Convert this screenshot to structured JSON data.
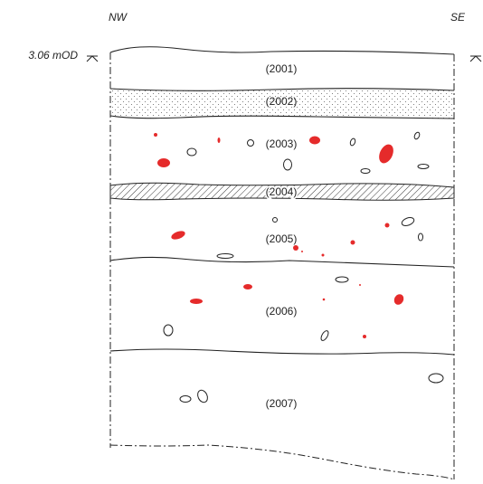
{
  "header": {
    "left": "NW",
    "right": "SE"
  },
  "datum": "3.06 mOD",
  "layers": [
    "(2001)",
    "(2002)",
    "(2003)",
    "(2004)",
    "(2005)",
    "(2006)",
    "(2007)"
  ]
}
